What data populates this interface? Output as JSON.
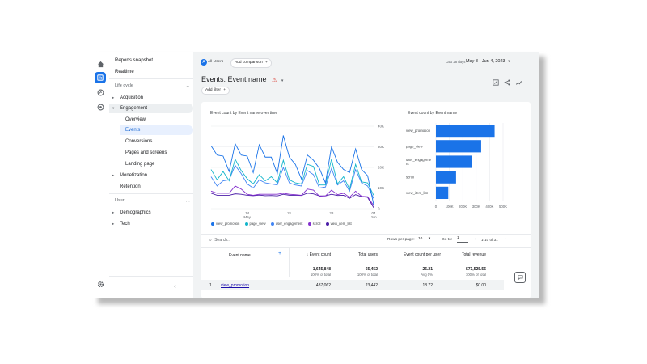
{
  "nav": {
    "reports_snapshot": "Reports snapshot",
    "realtime": "Realtime",
    "life_cycle": "Life cycle",
    "acquisition": "Acquisition",
    "engagement": "Engagement",
    "overview": "Overview",
    "events": "Events",
    "conversions": "Conversions",
    "pages_and_screens": "Pages and screens",
    "landing_page": "Landing page",
    "monetization": "Monetization",
    "retention": "Retention",
    "user": "User",
    "demographics": "Demographics",
    "tech": "Tech"
  },
  "topbar": {
    "segment_badge": "A",
    "segment": "All Users",
    "add_comparison": "Add comparison",
    "date_label": "Last 28 days",
    "date_range": "May 8 - Jun 4, 2023"
  },
  "page": {
    "title": "Events: Event name",
    "add_filter": "Add filter"
  },
  "line_chart": {
    "title": "Event count by Event name over time"
  },
  "bar_chart": {
    "title": "Event count by Event name"
  },
  "chart_data": [
    {
      "type": "line",
      "title": "Event count by Event name over time",
      "x_ticks": [
        "14 May",
        "21",
        "28",
        "04 Jun"
      ],
      "y_ticks": [
        "0",
        "10K",
        "20K",
        "30K",
        "40K"
      ],
      "ylim": [
        0,
        40000
      ],
      "grid": true,
      "legend_position": "bottom",
      "series": [
        {
          "name": "view_promotion",
          "color": "#1a73e8",
          "values": [
            30500,
            26000,
            25500,
            18000,
            31500,
            26000,
            25500,
            17500,
            31000,
            25000,
            25000,
            17000,
            35500,
            25000,
            21500,
            14500,
            26000,
            23500,
            19500,
            12500,
            30000,
            22500,
            19000,
            17500,
            29000,
            19000,
            16000,
            2000
          ]
        },
        {
          "name": "page_view",
          "color": "#12b5cb",
          "values": [
            19000,
            14000,
            18000,
            13500,
            24000,
            18500,
            14500,
            12000,
            16500,
            13500,
            15500,
            12500,
            23500,
            14000,
            12500,
            12000,
            21500,
            20500,
            11500,
            11500,
            24000,
            12000,
            15500,
            9500,
            21500,
            13000,
            12500,
            6500
          ]
        },
        {
          "name": "user_engagement",
          "color": "#4285f4",
          "values": [
            15500,
            11000,
            13500,
            14000,
            21000,
            17000,
            12000,
            10000,
            14000,
            12500,
            12000,
            11500,
            20000,
            12500,
            11500,
            11000,
            18500,
            16500,
            10000,
            10500,
            19500,
            11500,
            13500,
            8500,
            19000,
            12500,
            11000,
            5000
          ]
        },
        {
          "name": "scroll",
          "color": "#8430ce",
          "values": [
            8500,
            7500,
            7500,
            7500,
            11000,
            9500,
            7000,
            6500,
            7000,
            7000,
            7000,
            7000,
            7500,
            7000,
            6800,
            6500,
            9500,
            9000,
            6000,
            6200,
            9000,
            6800,
            7500,
            5500,
            8500,
            6000,
            5800,
            1500
          ]
        },
        {
          "name": "view_item_list",
          "color": "#4b1ea7",
          "values": [
            7500,
            6500,
            6500,
            6500,
            7200,
            7000,
            6500,
            6300,
            6600,
            6300,
            6400,
            6200,
            7000,
            6500,
            6500,
            6400,
            7500,
            7200,
            6200,
            6200,
            7000,
            6400,
            6500,
            5000,
            6800,
            5800,
            5500,
            500
          ]
        }
      ]
    },
    {
      "type": "bar",
      "title": "Event count by Event name",
      "categories": [
        "view_promotion",
        "page_view",
        "user_engageme nt",
        "scroll",
        "view_item_list"
      ],
      "values": [
        437062,
        337000,
        270000,
        150000,
        92000
      ],
      "x_ticks": [
        "0",
        "100K",
        "200K",
        "300K",
        "400K",
        "500K"
      ],
      "xlim": [
        0,
        500000
      ],
      "color": "#1a73e8"
    }
  ],
  "table": {
    "search_placeholder": "Search...",
    "rows_per_page_label": "Rows per page:",
    "rows_per_page_value": "10",
    "go_to_label": "Go to:",
    "go_to_value": "1",
    "pagination": "1-10 of 31",
    "headers": {
      "event_name": "Event name",
      "event_count": "Event count",
      "total_users": "Total users",
      "event_count_per_user": "Event count per user",
      "total_revenue": "Total revenue"
    },
    "totals": {
      "event_count": "1,645,848",
      "event_count_sub": "100% of total",
      "total_users": "65,452",
      "total_users_sub": "100% of total",
      "per_user": "26.21",
      "per_user_sub": "Avg 0%",
      "revenue": "$73,525.56",
      "revenue_sub": "100% of total"
    },
    "rows": [
      {
        "index": "1",
        "name": "view_promotion",
        "event_count": "437,062",
        "total_users": "23,442",
        "per_user": "18.72",
        "revenue": "$0.00"
      }
    ]
  }
}
